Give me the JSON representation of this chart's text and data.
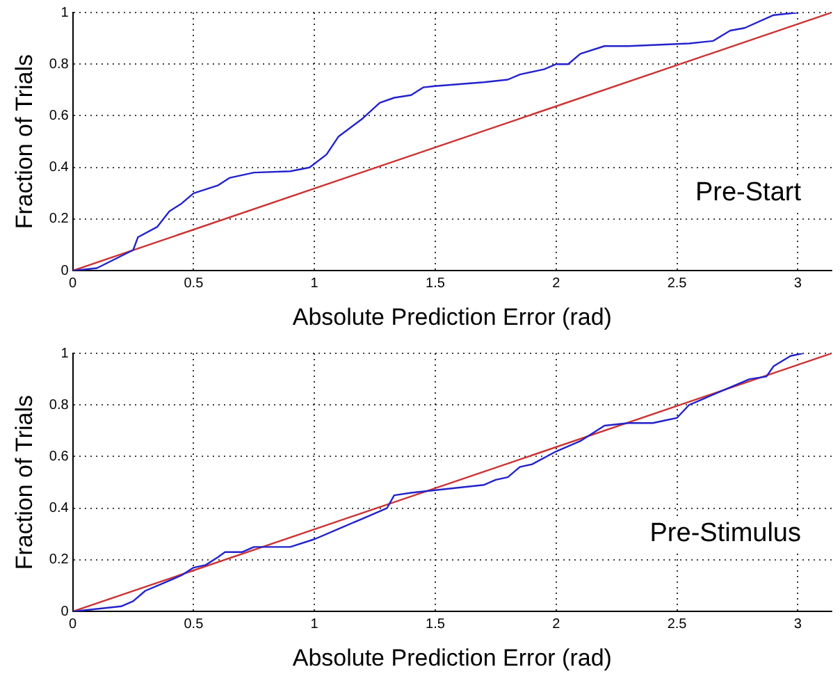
{
  "chart_data": [
    {
      "type": "line",
      "xlabel": "Absolute Prediction Error (rad)",
      "ylabel": "Fraction of Trials",
      "annotations": [
        "Pre-Start"
      ],
      "xlim": [
        0,
        3.14
      ],
      "ylim": [
        0,
        1
      ],
      "xticks": [
        0,
        0.5,
        1,
        1.5,
        2,
        2.5,
        3
      ],
      "yticks": [
        0,
        0.2,
        0.4,
        0.6,
        0.8,
        1
      ],
      "grid": true,
      "legend": false,
      "marker": "none",
      "line_style": "solid",
      "series": [
        {
          "color": "#2222cc",
          "x": [
            0,
            0.1,
            0.25,
            0.27,
            0.35,
            0.4,
            0.45,
            0.5,
            0.6,
            0.65,
            0.75,
            0.9,
            0.98,
            1.05,
            1.1,
            1.2,
            1.27,
            1.33,
            1.4,
            1.45,
            1.5,
            1.7,
            1.8,
            1.85,
            1.95,
            2.0,
            2.05,
            2.1,
            2.2,
            2.3,
            2.55,
            2.65,
            2.72,
            2.78,
            2.9,
            3.0
          ],
          "values": [
            0,
            0.01,
            0.08,
            0.13,
            0.17,
            0.23,
            0.26,
            0.3,
            0.33,
            0.36,
            0.38,
            0.385,
            0.4,
            0.45,
            0.52,
            0.59,
            0.65,
            0.67,
            0.68,
            0.71,
            0.715,
            0.73,
            0.74,
            0.76,
            0.78,
            0.8,
            0.8,
            0.84,
            0.87,
            0.87,
            0.88,
            0.89,
            0.93,
            0.94,
            0.99,
            1.0
          ]
        },
        {
          "color": "#cc3333",
          "x": [
            0,
            3.14
          ],
          "values": [
            0,
            1
          ]
        }
      ]
    },
    {
      "type": "line",
      "xlabel": "Absolute Prediction Error (rad)",
      "ylabel": "Fraction of Trials",
      "annotations": [
        "Pre-Stimulus"
      ],
      "xlim": [
        0,
        3.14
      ],
      "ylim": [
        0,
        1
      ],
      "xticks": [
        0,
        0.5,
        1,
        1.5,
        2,
        2.5,
        3
      ],
      "yticks": [
        0,
        0.2,
        0.4,
        0.6,
        0.8,
        1
      ],
      "grid": true,
      "legend": false,
      "marker": "none",
      "line_style": "solid",
      "series": [
        {
          "color": "#2222cc",
          "x": [
            0,
            0.1,
            0.2,
            0.25,
            0.3,
            0.35,
            0.45,
            0.5,
            0.55,
            0.6,
            0.63,
            0.7,
            0.75,
            0.9,
            1.0,
            1.1,
            1.2,
            1.3,
            1.33,
            1.4,
            1.5,
            1.6,
            1.7,
            1.75,
            1.8,
            1.85,
            1.9,
            2.0,
            2.1,
            2.2,
            2.3,
            2.4,
            2.45,
            2.5,
            2.55,
            2.6,
            2.7,
            2.8,
            2.87,
            2.9,
            2.97,
            3.02
          ],
          "values": [
            0,
            0.01,
            0.02,
            0.04,
            0.08,
            0.1,
            0.14,
            0.17,
            0.18,
            0.21,
            0.23,
            0.23,
            0.25,
            0.25,
            0.28,
            0.32,
            0.36,
            0.4,
            0.45,
            0.46,
            0.47,
            0.48,
            0.49,
            0.51,
            0.52,
            0.56,
            0.57,
            0.62,
            0.66,
            0.72,
            0.73,
            0.73,
            0.74,
            0.75,
            0.8,
            0.82,
            0.86,
            0.9,
            0.91,
            0.95,
            0.99,
            1.0
          ]
        },
        {
          "color": "#cc3333",
          "x": [
            0,
            3.14
          ],
          "values": [
            0,
            1
          ]
        }
      ]
    }
  ]
}
